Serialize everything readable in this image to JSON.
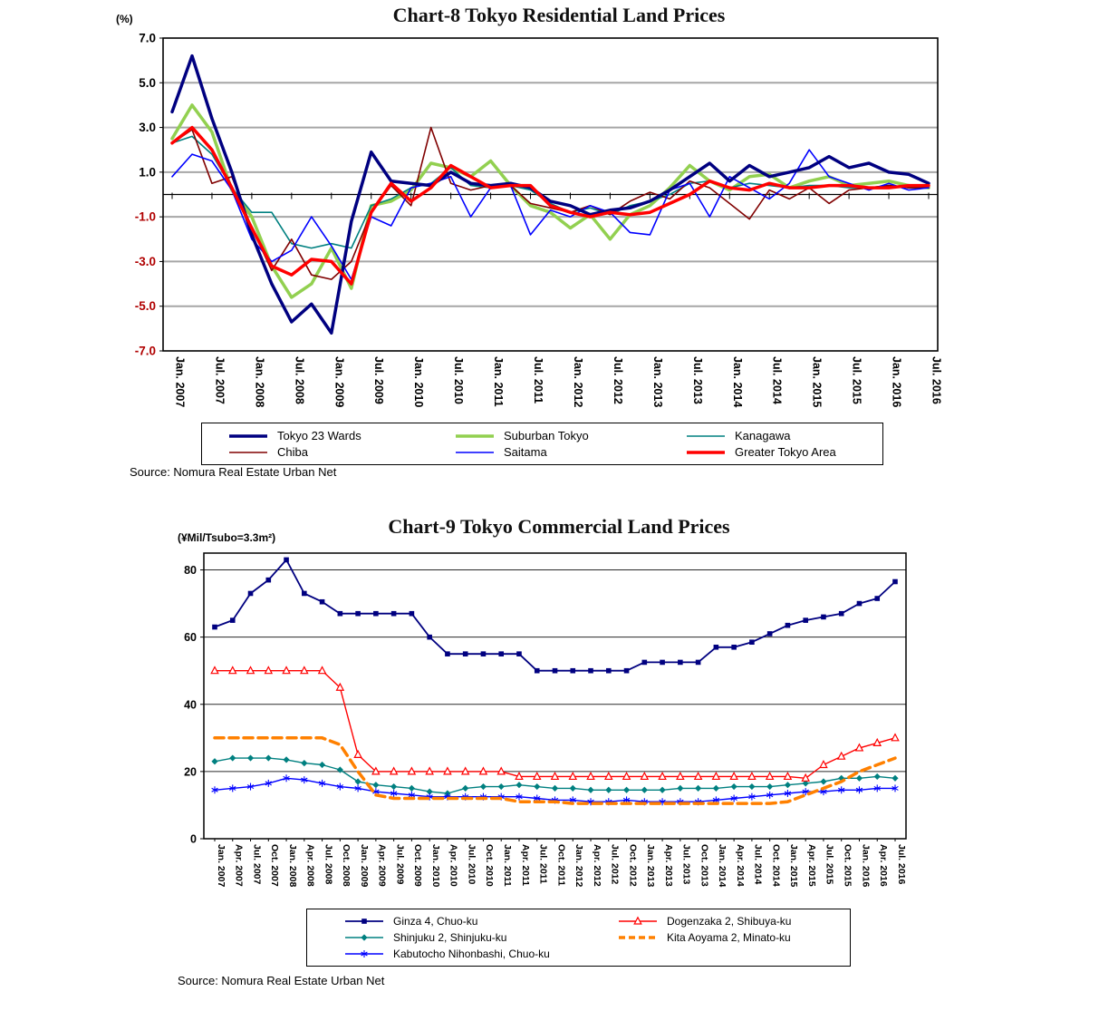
{
  "chart_data": [
    {
      "id": "chart8",
      "type": "line",
      "title": "Chart-8 Tokyo Residential Land Prices",
      "unit_label": "(%)",
      "source": "Source: Nomura Real Estate Urban Net",
      "ylim": [
        -7,
        7
      ],
      "yticks": [
        7,
        5,
        3,
        1,
        -1,
        -3,
        -5,
        -7
      ],
      "ytick_labels": [
        "7.0",
        "5.0",
        "3.0",
        "1.0",
        "-1.0",
        "-3.0",
        "-5.0",
        "-7.0"
      ],
      "negative_label_color": "#B00000",
      "zero_axis": true,
      "n_points": 39,
      "x_label_every": 2,
      "x_tick_labels": [
        "Jan. 2007",
        "Jul. 2007",
        "Jan. 2008",
        "Jul. 2008",
        "Jan. 2009",
        "Jul. 2009",
        "Jan. 2010",
        "Jul. 2010",
        "Jan. 2011",
        "Jul. 2011",
        "Jan. 2012",
        "Jul. 2012",
        "Jan. 2013",
        "Jul. 2013",
        "Jan. 2014",
        "Jul. 2014",
        "Jan. 2015",
        "Jul. 2015",
        "Jan. 2016",
        "Jul. 2016"
      ],
      "draw_order": [
        1,
        2,
        3,
        4,
        0,
        5
      ],
      "series": [
        {
          "name": "Tokyo 23 Wards",
          "color": "#000080",
          "width": 3.5,
          "marker": "none",
          "values": [
            3.7,
            6.2,
            3.4,
            1.0,
            -1.8,
            -4.0,
            -5.7,
            -4.9,
            -6.2,
            -1.2,
            1.9,
            0.6,
            0.5,
            0.4,
            1.0,
            0.5,
            0.4,
            0.5,
            0.3,
            -0.3,
            -0.5,
            -0.9,
            -0.7,
            -0.6,
            -0.3,
            0.2,
            0.8,
            1.4,
            0.6,
            1.3,
            0.8,
            1.0,
            1.2,
            1.7,
            1.2,
            1.4,
            1.0,
            0.9,
            0.5
          ]
        },
        {
          "name": "Suburban Tokyo",
          "color": "#92D050",
          "width": 3.5,
          "marker": "none",
          "values": [
            2.5,
            4.0,
            2.8,
            0.2,
            -1.0,
            -3.2,
            -4.6,
            -4.0,
            -2.4,
            -4.2,
            -0.5,
            -0.3,
            0.2,
            1.4,
            1.2,
            0.8,
            1.5,
            0.4,
            -0.5,
            -0.8,
            -1.5,
            -0.9,
            -2.0,
            -0.9,
            -0.5,
            0.3,
            1.3,
            0.6,
            0.2,
            0.8,
            0.9,
            0.3,
            0.6,
            0.8,
            0.4,
            0.5,
            0.6,
            0.4,
            0.3
          ]
        },
        {
          "name": "Kanagawa",
          "color": "#008080",
          "width": 1.6,
          "marker": "none",
          "values": [
            2.3,
            2.6,
            1.8,
            0.3,
            -0.8,
            -0.8,
            -2.2,
            -2.4,
            -2.2,
            -2.4,
            -0.5,
            -0.2,
            0.3,
            0.5,
            1.2,
            0.4,
            0.3,
            0.4,
            0.2,
            -0.4,
            -0.8,
            -0.6,
            -0.9,
            -0.5,
            -0.3,
            0.0,
            0.5,
            0.6,
            0.3,
            0.5,
            0.4,
            0.3,
            0.4,
            0.4,
            0.3,
            0.3,
            0.4,
            0.3,
            0.3
          ]
        },
        {
          "name": "Chiba",
          "color": "#800000",
          "width": 1.6,
          "marker": "none",
          "values": [
            2.3,
            2.9,
            0.5,
            0.8,
            -1.5,
            -3.4,
            -2.0,
            -3.6,
            -3.8,
            -3.0,
            -0.8,
            0.4,
            -0.5,
            3.0,
            0.5,
            0.2,
            0.4,
            0.4,
            -0.4,
            -0.6,
            -0.8,
            -0.5,
            -0.9,
            -0.3,
            0.1,
            -0.2,
            0.6,
            0.3,
            -0.4,
            -1.1,
            0.2,
            -0.2,
            0.3,
            -0.4,
            0.2,
            0.3,
            0.4,
            0.3,
            0.3
          ]
        },
        {
          "name": "Saitama",
          "color": "#0000FF",
          "width": 1.6,
          "marker": "none",
          "values": [
            0.8,
            1.8,
            1.5,
            0.2,
            -2.0,
            -3.0,
            -2.5,
            -1.0,
            -2.3,
            -3.8,
            -1.0,
            -1.4,
            0.3,
            0.5,
            0.8,
            -1.0,
            0.3,
            0.4,
            -1.8,
            -0.7,
            -1.0,
            -0.5,
            -0.8,
            -1.7,
            -1.8,
            0.2,
            0.5,
            -1.0,
            0.8,
            0.3,
            -0.2,
            0.5,
            2.0,
            0.8,
            0.5,
            0.2,
            0.5,
            0.2,
            0.3
          ]
        },
        {
          "name": "Greater Tokyo Area",
          "color": "#FF0000",
          "width": 3.5,
          "marker": "none",
          "values": [
            2.3,
            3.0,
            2.0,
            0.3,
            -1.5,
            -3.2,
            -3.6,
            -2.9,
            -3.0,
            -4.0,
            -0.8,
            0.5,
            -0.3,
            0.3,
            1.3,
            0.8,
            0.3,
            0.4,
            0.4,
            -0.5,
            -0.8,
            -1.0,
            -0.8,
            -0.9,
            -0.8,
            -0.4,
            0.0,
            0.6,
            0.3,
            0.2,
            0.5,
            0.3,
            0.3,
            0.4,
            0.4,
            0.3,
            0.3,
            0.4,
            0.4
          ]
        }
      ]
    },
    {
      "id": "chart9",
      "type": "line",
      "title": "Chart-9 Tokyo Commercial Land Prices",
      "unit_label": "(¥Mil/Tsubo=3.3m²)",
      "source": "Source: Nomura Real Estate Urban Net",
      "ylim": [
        0,
        85
      ],
      "yticks": [
        80,
        60,
        40,
        20,
        0
      ],
      "ytick_labels": [
        "80",
        "60",
        "40",
        "20",
        "0"
      ],
      "zero_axis": false,
      "n_points": 39,
      "x_label_every": 1,
      "x_tick_labels": [
        "Jan. 2007",
        "Apr. 2007",
        "Jul. 2007",
        "Oct. 2007",
        "Jan. 2008",
        "Apr. 2008",
        "Jul. 2008",
        "Oct. 2008",
        "Jan. 2009",
        "Apr. 2009",
        "Jul. 2009",
        "Oct. 2009",
        "Jan. 2010",
        "Apr. 2010",
        "Jul. 2010",
        "Oct. 2010",
        "Jan. 2011",
        "Apr. 2011",
        "Jul. 2011",
        "Oct. 2011",
        "Jan. 2012",
        "Apr. 2012",
        "Jul. 2012",
        "Oct. 2012",
        "Jan. 2013",
        "Apr. 2013",
        "Jul. 2013",
        "Oct. 2013",
        "Jan. 2014",
        "Apr. 2014",
        "Jul. 2014",
        "Oct. 2014",
        "Jan. 2015",
        "Apr. 2015",
        "Jul. 2015",
        "Oct. 2015",
        "Jan. 2016",
        "Apr. 2016",
        "Jul. 2016"
      ],
      "draw_order": [
        0,
        2,
        4,
        3,
        1
      ],
      "series": [
        {
          "name": "Ginza 4, Chuo-ku",
          "color": "#000080",
          "width": 1.8,
          "marker": "square",
          "values": [
            63,
            65,
            73,
            77,
            83,
            73,
            70.5,
            67,
            67,
            67,
            67,
            67,
            60,
            55,
            55,
            55,
            55,
            55,
            50,
            50,
            50,
            50,
            50,
            50,
            52.5,
            52.5,
            52.5,
            52.5,
            57,
            57,
            58.5,
            61,
            63.5,
            65,
            66,
            67,
            70,
            71.5,
            76.5
          ]
        },
        {
          "name": "Dogenzaka 2, Shibuya-ku",
          "color": "#FF0000",
          "width": 1.4,
          "marker": "triangle-open",
          "values": [
            50,
            50,
            50,
            50,
            50,
            50,
            50,
            45,
            25,
            20,
            20,
            20,
            20,
            20,
            20,
            20,
            20,
            18.5,
            18.5,
            18.5,
            18.5,
            18.5,
            18.5,
            18.5,
            18.5,
            18.5,
            18.5,
            18.5,
            18.5,
            18.5,
            18.5,
            18.5,
            18.5,
            18,
            22,
            24.5,
            27,
            28.5,
            30
          ]
        },
        {
          "name": "Shinjuku 2, Shinjuku-ku",
          "color": "#008080",
          "width": 1.4,
          "marker": "diamond",
          "values": [
            23,
            24,
            24,
            24,
            23.5,
            22.5,
            22,
            20.5,
            17,
            16,
            15.5,
            15,
            14,
            13.5,
            15,
            15.5,
            15.5,
            16,
            15.5,
            15,
            15,
            14.5,
            14.5,
            14.5,
            14.5,
            14.5,
            15,
            15,
            15,
            15.5,
            15.5,
            15.5,
            16,
            16.5,
            17,
            18,
            18,
            18.5,
            18
          ]
        },
        {
          "name": "Kita Aoyama 2, Minato-ku",
          "color": "#FF8000",
          "width": 3.5,
          "marker": "none",
          "dash": "10,6",
          "values": [
            30,
            30,
            30,
            30,
            30,
            30,
            30,
            28,
            20,
            13,
            12,
            12,
            12,
            12,
            12,
            12,
            12,
            11,
            11,
            11,
            10.5,
            10.5,
            10.5,
            10.5,
            10.5,
            10.5,
            10.5,
            10.5,
            10.5,
            10.5,
            10.5,
            10.5,
            11,
            13,
            15,
            17,
            20,
            22,
            24
          ]
        },
        {
          "name": "Kabutocho Nihonbashi, Chuo-ku",
          "color": "#0000FF",
          "width": 1.4,
          "marker": "asterisk",
          "values": [
            14.5,
            15,
            15.5,
            16.5,
            18,
            17.5,
            16.5,
            15.5,
            15,
            14,
            13.5,
            13,
            12.5,
            12.5,
            12.5,
            12.5,
            12.5,
            12.5,
            12,
            11.5,
            11.5,
            11,
            11,
            11.5,
            11,
            11,
            11,
            11,
            11.5,
            12,
            12.5,
            13,
            13.5,
            14,
            14,
            14.5,
            14.5,
            15,
            15
          ]
        }
      ]
    }
  ]
}
